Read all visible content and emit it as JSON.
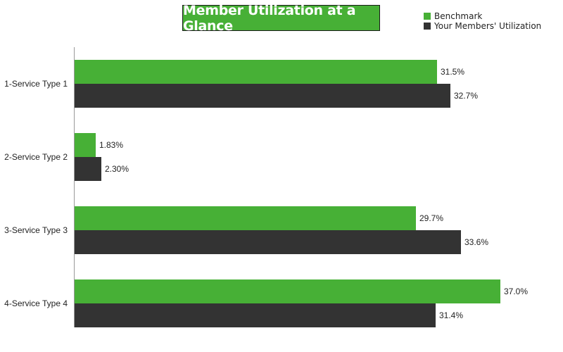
{
  "chart_data": {
    "type": "bar",
    "orientation": "horizontal",
    "title": "Member Utilization at a Glance",
    "categories": [
      "1-Service Type 1",
      "2-Service Type 2",
      "3-Service Type 3",
      "4-Service Type 4"
    ],
    "series": [
      {
        "name": "Benchmark",
        "color": "#47b036",
        "values": [
          31.5,
          1.83,
          29.7,
          37.0
        ],
        "labels": [
          "31.5%",
          "1.83%",
          "29.7%",
          "37.0%"
        ]
      },
      {
        "name": "Your Members' Utilization",
        "color": "#333333",
        "values": [
          32.7,
          2.3,
          33.6,
          31.4
        ],
        "labels": [
          "32.7%",
          "2.30%",
          "33.6%",
          "31.4%"
        ]
      }
    ],
    "xlabel": "",
    "ylabel": "",
    "value_unit": "%",
    "legend_position": "top-right",
    "grid": false
  },
  "colors": {
    "benchmark": "#47b036",
    "members": "#333333",
    "title_bg": "#47b036"
  }
}
